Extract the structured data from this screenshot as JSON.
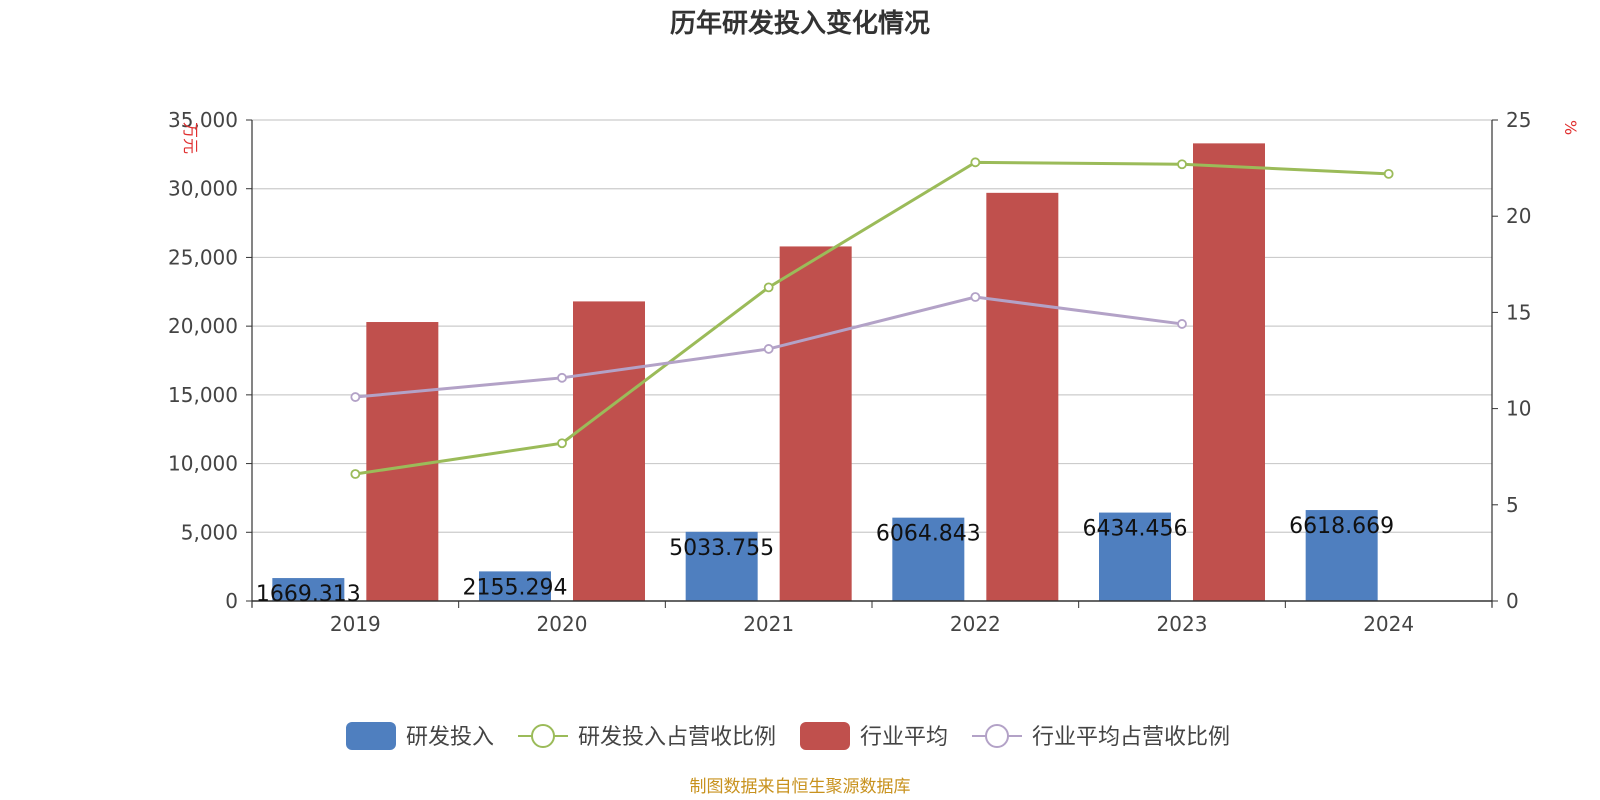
{
  "chart_data": {
    "type": "bar",
    "title": "历年研发投入变化情况",
    "categories": [
      "2019",
      "2020",
      "2021",
      "2022",
      "2023",
      "2024"
    ],
    "y_left": {
      "label": "万元",
      "lim": [
        0,
        35000
      ],
      "ticks": [
        0,
        5000,
        10000,
        15000,
        20000,
        25000,
        30000,
        35000
      ],
      "tick_labels": [
        "0",
        "5,000",
        "10,000",
        "15,000",
        "20,000",
        "25,000",
        "30,000",
        "35,000"
      ]
    },
    "y_right": {
      "label": "%",
      "lim": [
        0,
        25
      ],
      "ticks": [
        0,
        5,
        10,
        15,
        20,
        25
      ],
      "tick_labels": [
        "0",
        "5",
        "10",
        "15",
        "20",
        "25"
      ]
    },
    "grid": true,
    "legend_position": "bottom",
    "series": [
      {
        "name": "研发投入",
        "type": "bar",
        "axis": "left",
        "color": "#4f7fbf",
        "values": [
          1669.313,
          2155.294,
          5033.755,
          6064.843,
          6434.456,
          6618.669
        ],
        "data_labels": [
          "1669.313",
          "2155.294",
          "5033.755",
          "6064.843",
          "6434.456",
          "6618.669"
        ]
      },
      {
        "name": "研发投入占营收比例",
        "type": "line",
        "axis": "right",
        "color": "#9bbb59",
        "values": [
          6.6,
          8.2,
          16.3,
          22.8,
          22.7,
          22.2
        ]
      },
      {
        "name": "行业平均",
        "type": "bar",
        "axis": "left",
        "color": "#c0504d",
        "values": [
          20300,
          21800,
          25800,
          29700,
          33300,
          null
        ]
      },
      {
        "name": "行业平均占营收比例",
        "type": "line",
        "axis": "right",
        "color": "#b3a2c7",
        "values": [
          10.6,
          11.6,
          13.1,
          15.8,
          14.4,
          null
        ]
      }
    ],
    "source": "制图数据来自恒生聚源数据库"
  }
}
